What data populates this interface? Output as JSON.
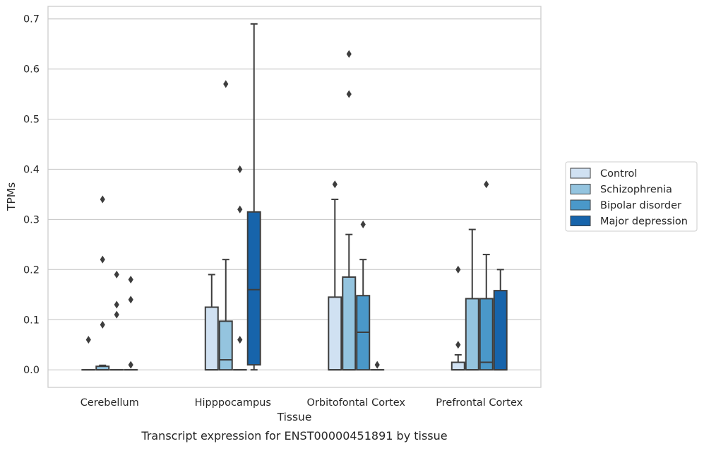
{
  "chart_data": {
    "type": "box",
    "title": "",
    "caption": "Transcript expression for ENST00000451891 by tissue",
    "xlabel": "Tissue",
    "ylabel": "TPMs",
    "ylim": [
      -0.035,
      0.725
    ],
    "yticks": [
      0.0,
      0.1,
      0.2,
      0.3,
      0.4,
      0.5,
      0.6,
      0.7
    ],
    "ytick_labels": [
      "0.0",
      "0.1",
      "0.2",
      "0.3",
      "0.4",
      "0.5",
      "0.6",
      "0.7"
    ],
    "grid": "horizontal",
    "legend_position": "right",
    "categories": [
      "Cerebellum",
      "Hipppocampus",
      "Orbitofontal Cortex",
      "Prefrontal Cortex"
    ],
    "series": [
      {
        "name": "Control",
        "color": "#d0e1f2",
        "boxes": [
          {
            "q1": 0.0,
            "median": 0.0,
            "q3": 0.0,
            "whisker_low": 0.0,
            "whisker_high": 0.0,
            "outliers": [
              0.06
            ]
          },
          {
            "q1": 0.0,
            "median": 0.0,
            "q3": 0.125,
            "whisker_low": 0.0,
            "whisker_high": 0.19,
            "outliers": []
          },
          {
            "q1": 0.0,
            "median": 0.0,
            "q3": 0.145,
            "whisker_low": 0.0,
            "whisker_high": 0.34,
            "outliers": [
              0.37
            ]
          },
          {
            "q1": 0.0,
            "median": 0.0,
            "q3": 0.015,
            "whisker_low": 0.0,
            "whisker_high": 0.03,
            "outliers": [
              0.05,
              0.2
            ]
          }
        ]
      },
      {
        "name": "Schizophrenia",
        "color": "#94c4df",
        "boxes": [
          {
            "q1": 0.0,
            "median": 0.0,
            "q3": 0.007,
            "whisker_low": 0.0,
            "whisker_high": 0.009,
            "outliers": [
              0.09,
              0.22,
              0.34
            ]
          },
          {
            "q1": 0.0,
            "median": 0.02,
            "q3": 0.097,
            "whisker_low": 0.0,
            "whisker_high": 0.22,
            "outliers": [
              0.57
            ]
          },
          {
            "q1": 0.0,
            "median": 0.0,
            "q3": 0.185,
            "whisker_low": 0.0,
            "whisker_high": 0.27,
            "outliers": [
              0.55,
              0.63
            ]
          },
          {
            "q1": 0.0,
            "median": 0.0,
            "q3": 0.142,
            "whisker_low": 0.0,
            "whisker_high": 0.28,
            "outliers": []
          }
        ]
      },
      {
        "name": "Bipolar disorder",
        "color": "#4a98c9",
        "boxes": [
          {
            "q1": 0.0,
            "median": 0.0,
            "q3": 0.0,
            "whisker_low": 0.0,
            "whisker_high": 0.0,
            "outliers": [
              0.11,
              0.13,
              0.19
            ]
          },
          {
            "q1": 0.0,
            "median": 0.0,
            "q3": 0.0,
            "whisker_low": 0.0,
            "whisker_high": 0.0,
            "outliers": [
              0.06,
              0.32,
              0.4
            ]
          },
          {
            "q1": 0.0,
            "median": 0.075,
            "q3": 0.148,
            "whisker_low": 0.0,
            "whisker_high": 0.22,
            "outliers": [
              0.29
            ]
          },
          {
            "q1": 0.0,
            "median": 0.015,
            "q3": 0.142,
            "whisker_low": 0.0,
            "whisker_high": 0.23,
            "outliers": [
              0.37
            ]
          }
        ]
      },
      {
        "name": "Major depression",
        "color": "#1764ab",
        "boxes": [
          {
            "q1": 0.0,
            "median": 0.0,
            "q3": 0.0,
            "whisker_low": 0.0,
            "whisker_high": 0.0,
            "outliers": [
              0.01,
              0.14,
              0.18
            ]
          },
          {
            "q1": 0.01,
            "median": 0.16,
            "q3": 0.315,
            "whisker_low": 0.0,
            "whisker_high": 0.69,
            "outliers": []
          },
          {
            "q1": 0.0,
            "median": 0.0,
            "q3": 0.0,
            "whisker_low": 0.0,
            "whisker_high": 0.0,
            "outliers": [
              0.01
            ]
          },
          {
            "q1": 0.0,
            "median": 0.0,
            "q3": 0.158,
            "whisker_low": 0.0,
            "whisker_high": 0.2,
            "outliers": []
          }
        ]
      }
    ]
  }
}
